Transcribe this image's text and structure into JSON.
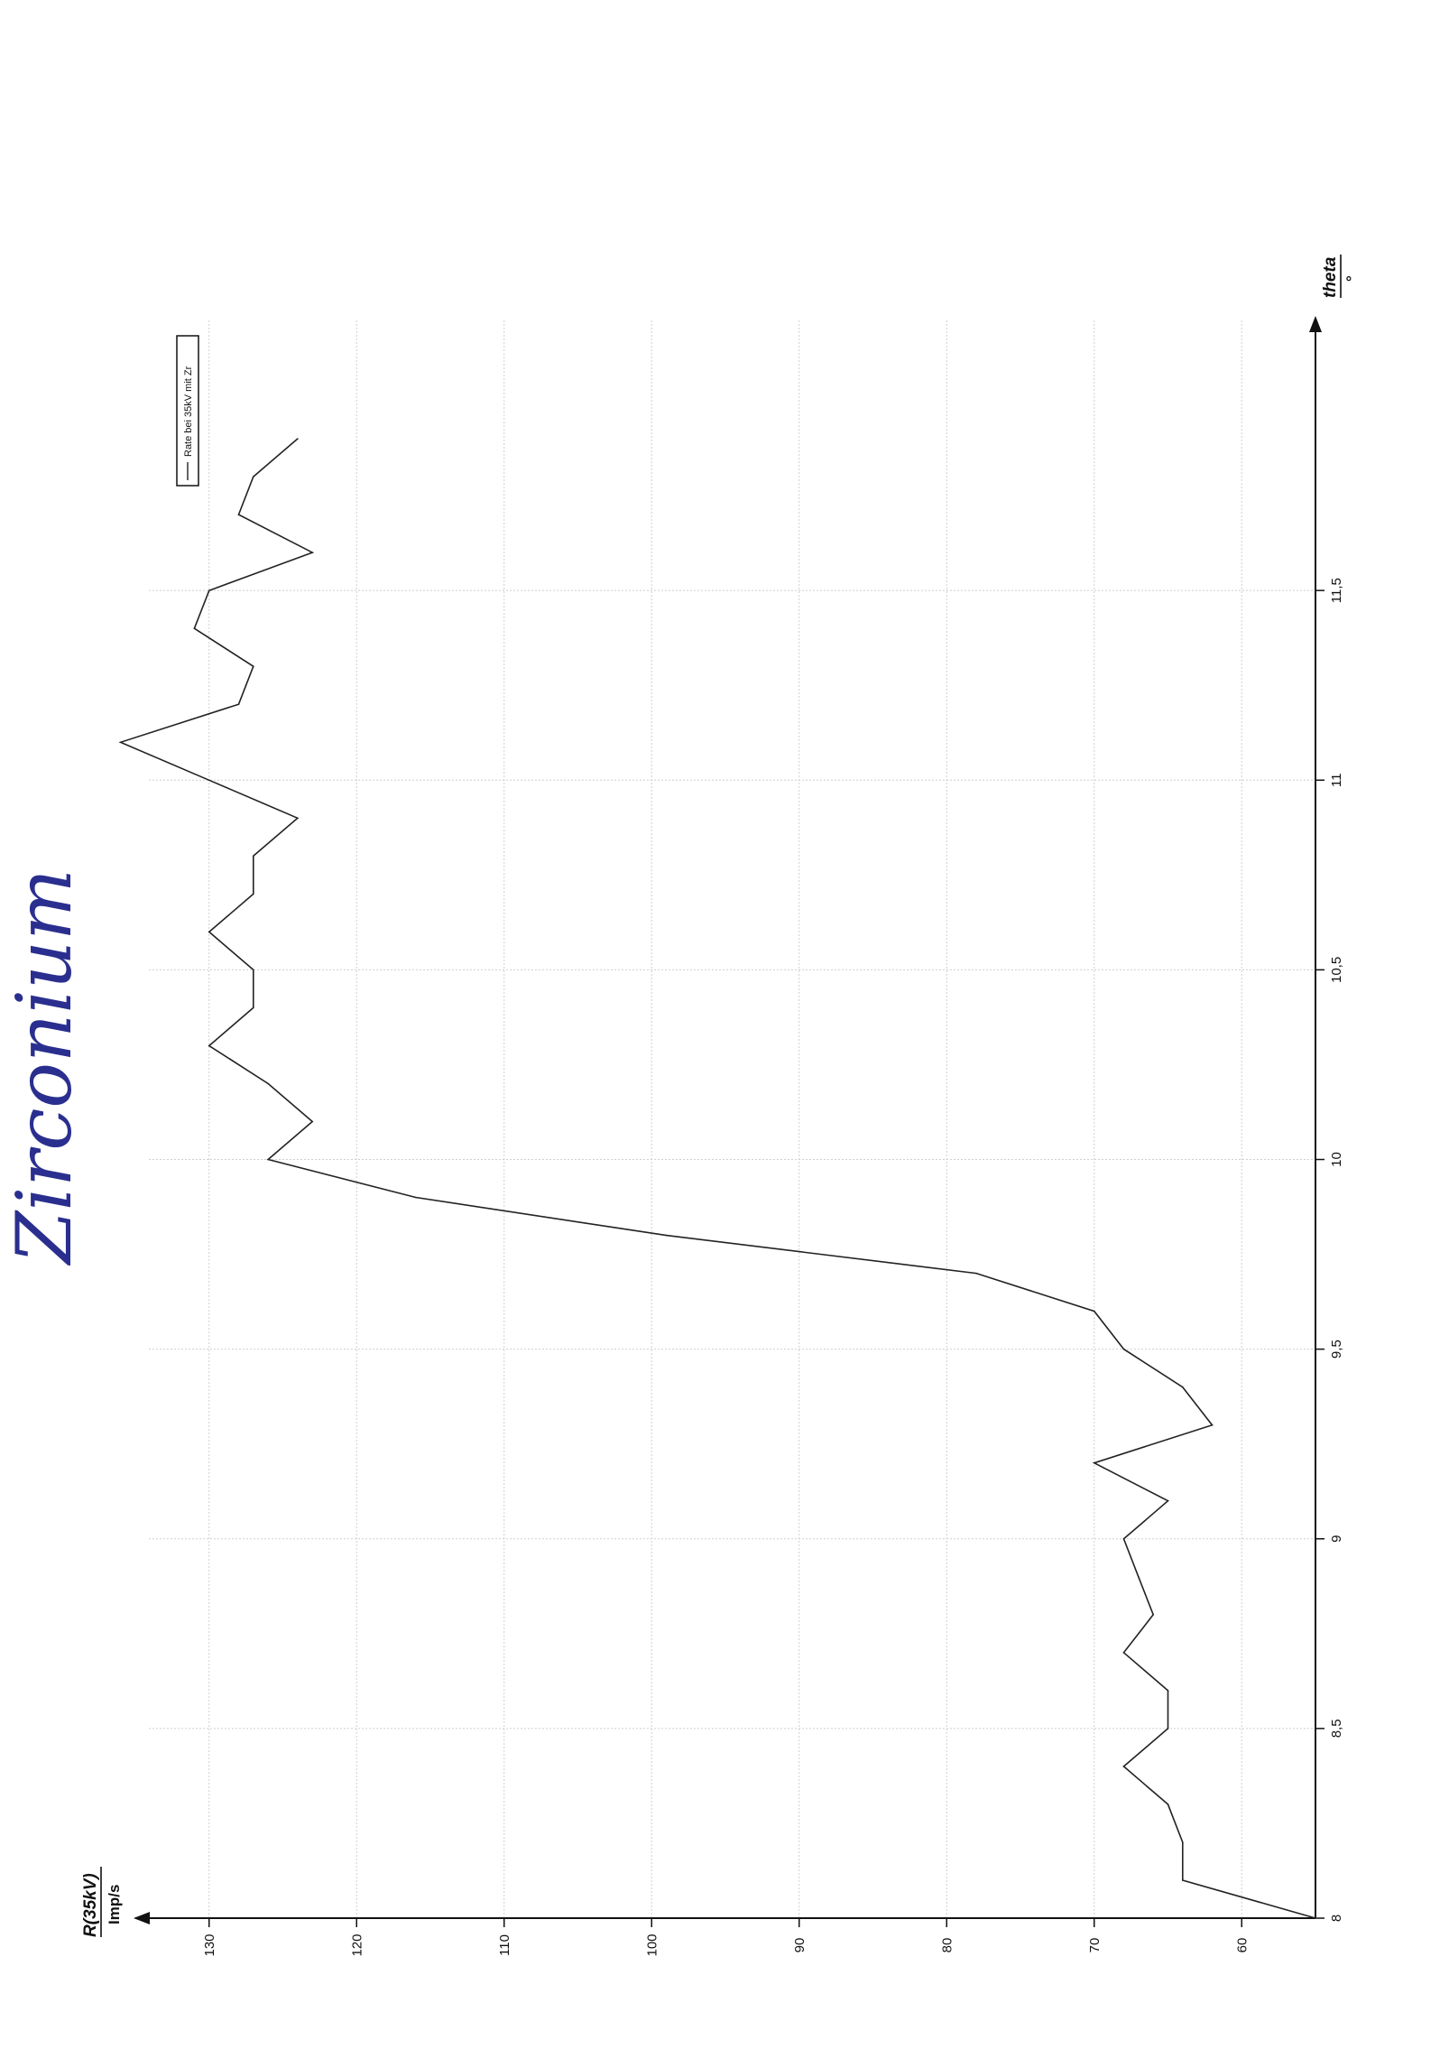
{
  "annotation": {
    "handwritten_note": "Zirconium"
  },
  "chart_data": {
    "type": "line",
    "orientation": "rotated-90-ccw",
    "xlabel": "theta",
    "xunit": "°",
    "ylabel": "R(35kV)",
    "yunit": "Imp/s",
    "xlim": [
      8,
      12.2
    ],
    "ylim": [
      55,
      135
    ],
    "xticks": [
      8,
      8.5,
      9,
      9.5,
      10,
      10.5,
      11,
      11.5
    ],
    "xtick_labels": [
      "8",
      "8,5",
      "9",
      "9,5",
      "10",
      "10,5",
      "11",
      "11,5"
    ],
    "yticks": [
      60,
      70,
      80,
      90,
      100,
      110,
      120,
      130
    ],
    "ytick_labels": [
      "60",
      "70",
      "80",
      "90",
      "100",
      "110",
      "120",
      "130"
    ],
    "grid": true,
    "legend_position": "top-right",
    "series": [
      {
        "name": "Rate bei 35kV mit Zr",
        "x": [
          8.0,
          8.1,
          8.2,
          8.3,
          8.4,
          8.5,
          8.6,
          8.7,
          8.8,
          8.9,
          9.0,
          9.1,
          9.2,
          9.3,
          9.4,
          9.5,
          9.6,
          9.7,
          9.8,
          9.9,
          10.0,
          10.1,
          10.2,
          10.3,
          10.4,
          10.5,
          10.6,
          10.7,
          10.8,
          10.9,
          11.0,
          11.1,
          11.2,
          11.3,
          11.4,
          11.5,
          11.6,
          11.7,
          11.8,
          11.9
        ],
        "y": [
          55.0,
          64.0,
          64.0,
          65.0,
          68.0,
          65.0,
          65.0,
          68.0,
          66.0,
          67.0,
          68.0,
          65.0,
          70.0,
          62.0,
          64.0,
          68.0,
          70.0,
          78.0,
          99.0,
          116.0,
          126.0,
          123.0,
          126.0,
          130.0,
          127.0,
          127.0,
          130.0,
          127.0,
          127.0,
          124.0,
          130.0,
          136.0,
          128.0,
          127.0,
          131.0,
          130.0,
          123.0,
          128.0,
          127.0,
          124.0
        ]
      }
    ]
  },
  "colors": {
    "line": "#222222",
    "grid": "#cfcfcf",
    "axis": "#111111",
    "handwriting": "#2a2f8f"
  }
}
